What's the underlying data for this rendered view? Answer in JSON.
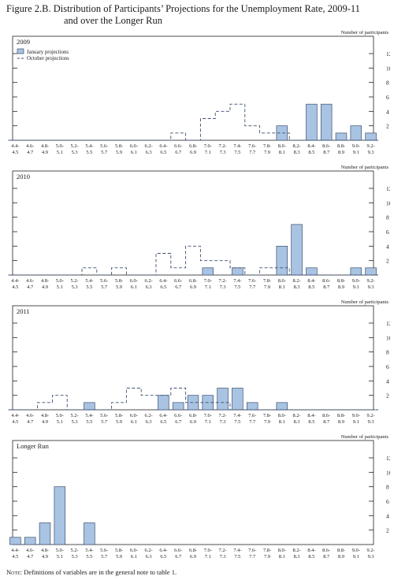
{
  "figure": {
    "title_line1": "Figure 2.B. Distribution of Participants’ Projections for the Unemployment Rate, 2009-11",
    "title_line2": "and over the Longer Run",
    "note_label": "Note:",
    "note_text": "Definitions of variables are in the general note to table 1."
  },
  "chart_data": [
    {
      "type": "bar",
      "title": "2009",
      "ylabel": "Number of participants",
      "xlabel": "Percent range",
      "ylim": [
        0,
        12
      ],
      "yticks": [
        2,
        4,
        6,
        8,
        10,
        12
      ],
      "legend": {
        "placement": "top-left",
        "entries": [
          "January projections",
          "October projections"
        ]
      },
      "categories": [
        "4.4-4.5",
        "4.6-4.7",
        "4.8-4.9",
        "5.0-5.1",
        "5.2-5.3",
        "5.4-5.5",
        "5.6-5.7",
        "5.8-5.9",
        "6.0-6.1",
        "6.2-6.3",
        "6.4-6.5",
        "6.6-6.7",
        "6.8-6.9",
        "7.0-7.1",
        "7.2-7.3",
        "7.4-7.5",
        "7.6-7.7",
        "7.8-7.9",
        "8.0-8.1",
        "8.2-8.3",
        "8.4-8.5",
        "8.6-8.7",
        "8.8-8.9",
        "9.0-9.1",
        "9.2-9.3"
      ],
      "series": [
        {
          "name": "January projections",
          "style": "bar",
          "values": [
            0,
            0,
            0,
            0,
            0,
            0,
            0,
            0,
            0,
            0,
            0,
            0,
            0,
            0,
            0,
            0,
            0,
            0,
            2,
            0,
            5,
            5,
            1,
            2,
            1
          ]
        },
        {
          "name": "October projections",
          "style": "dashed-step",
          "values": [
            0,
            0,
            0,
            0,
            0,
            0,
            0,
            0,
            0,
            0,
            0,
            1,
            0,
            3,
            4,
            5,
            2,
            1,
            1,
            0,
            0,
            0,
            0,
            0,
            0
          ]
        }
      ]
    },
    {
      "type": "bar",
      "title": "2010",
      "ylabel": "Number of participants",
      "xlabel": "Percent range",
      "ylim": [
        0,
        12
      ],
      "yticks": [
        2,
        4,
        6,
        8,
        10,
        12
      ],
      "categories": [
        "4.4-4.5",
        "4.6-4.7",
        "4.8-4.9",
        "5.0-5.1",
        "5.2-5.3",
        "5.4-5.5",
        "5.6-5.7",
        "5.8-5.9",
        "6.0-6.1",
        "6.2-6.3",
        "6.4-6.5",
        "6.6-6.7",
        "6.8-6.9",
        "7.0-7.1",
        "7.2-7.3",
        "7.4-7.5",
        "7.6-7.7",
        "7.8-7.9",
        "8.0-8.1",
        "8.2-8.3",
        "8.4-8.5",
        "8.6-8.7",
        "8.8-8.9",
        "9.0-9.1",
        "9.2-9.3"
      ],
      "series": [
        {
          "name": "January projections",
          "style": "bar",
          "values": [
            0,
            0,
            0,
            0,
            0,
            0,
            0,
            0,
            0,
            0,
            0,
            0,
            0,
            1,
            0,
            1,
            0,
            0,
            4,
            7,
            1,
            0,
            0,
            1,
            1
          ]
        },
        {
          "name": "October projections",
          "style": "dashed-step",
          "values": [
            0,
            0,
            0,
            0,
            0,
            1,
            0,
            1,
            0,
            0,
            3,
            1,
            4,
            2,
            2,
            1,
            0,
            1,
            1,
            0,
            0,
            0,
            0,
            0,
            0
          ]
        }
      ]
    },
    {
      "type": "bar",
      "title": "2011",
      "ylabel": "Number of participants",
      "xlabel": "Percent range",
      "ylim": [
        0,
        12
      ],
      "yticks": [
        2,
        4,
        6,
        8,
        10,
        12
      ],
      "categories": [
        "4.4-4.5",
        "4.6-4.7",
        "4.8-4.9",
        "5.0-5.1",
        "5.2-5.3",
        "5.4-5.5",
        "5.6-5.7",
        "5.8-5.9",
        "6.0-6.1",
        "6.2-6.3",
        "6.4-6.5",
        "6.6-6.7",
        "6.8-6.9",
        "7.0-7.1",
        "7.2-7.3",
        "7.4-7.5",
        "7.6-7.7",
        "7.8-7.9",
        "8.0-8.1",
        "8.2-8.3",
        "8.4-8.5",
        "8.6-8.7",
        "8.8-8.9",
        "9.0-9.1",
        "9.2-9.3"
      ],
      "series": [
        {
          "name": "January projections",
          "style": "bar",
          "values": [
            0,
            0,
            0,
            0,
            0,
            1,
            0,
            0,
            0,
            0,
            2,
            1,
            2,
            2,
            3,
            3,
            1,
            0,
            1,
            0,
            0,
            0,
            0,
            0,
            0
          ]
        },
        {
          "name": "October projections",
          "style": "dashed-step",
          "values": [
            0,
            0,
            1,
            2,
            0,
            0,
            0,
            1,
            3,
            2,
            2,
            3,
            1,
            1,
            1,
            0,
            0,
            0,
            0,
            0,
            0,
            0,
            0,
            0,
            0
          ]
        }
      ]
    },
    {
      "type": "bar",
      "title": "Longer Run",
      "ylabel": "Number of participants",
      "xlabel": "Percent range",
      "ylim": [
        0,
        12
      ],
      "yticks": [
        2,
        4,
        6,
        8,
        10,
        12
      ],
      "categories": [
        "4.4-4.5",
        "4.6-4.7",
        "4.8-4.9",
        "5.0-5.1",
        "5.2-5.3",
        "5.4-5.5",
        "5.6-5.7",
        "5.8-5.9",
        "6.0-6.1",
        "6.2-6.3",
        "6.4-6.5",
        "6.6-6.7",
        "6.8-6.9",
        "7.0-7.1",
        "7.2-7.3",
        "7.4-7.5",
        "7.6-7.7",
        "7.8-7.9",
        "8.0-8.1",
        "8.2-8.3",
        "8.4-8.5",
        "8.6-8.7",
        "8.8-8.9",
        "9.0-9.1",
        "9.2-9.3"
      ],
      "series": [
        {
          "name": "January projections",
          "style": "bar",
          "values": [
            1,
            1,
            3,
            8,
            0,
            3,
            0,
            0,
            0,
            0,
            0,
            0,
            0,
            0,
            0,
            0,
            0,
            0,
            0,
            0,
            0,
            0,
            0,
            0,
            0
          ]
        }
      ]
    }
  ],
  "colors": {
    "bar_fill": "#a9c3e3",
    "bar_stroke": "#3b4f70",
    "frame": "#222222"
  }
}
